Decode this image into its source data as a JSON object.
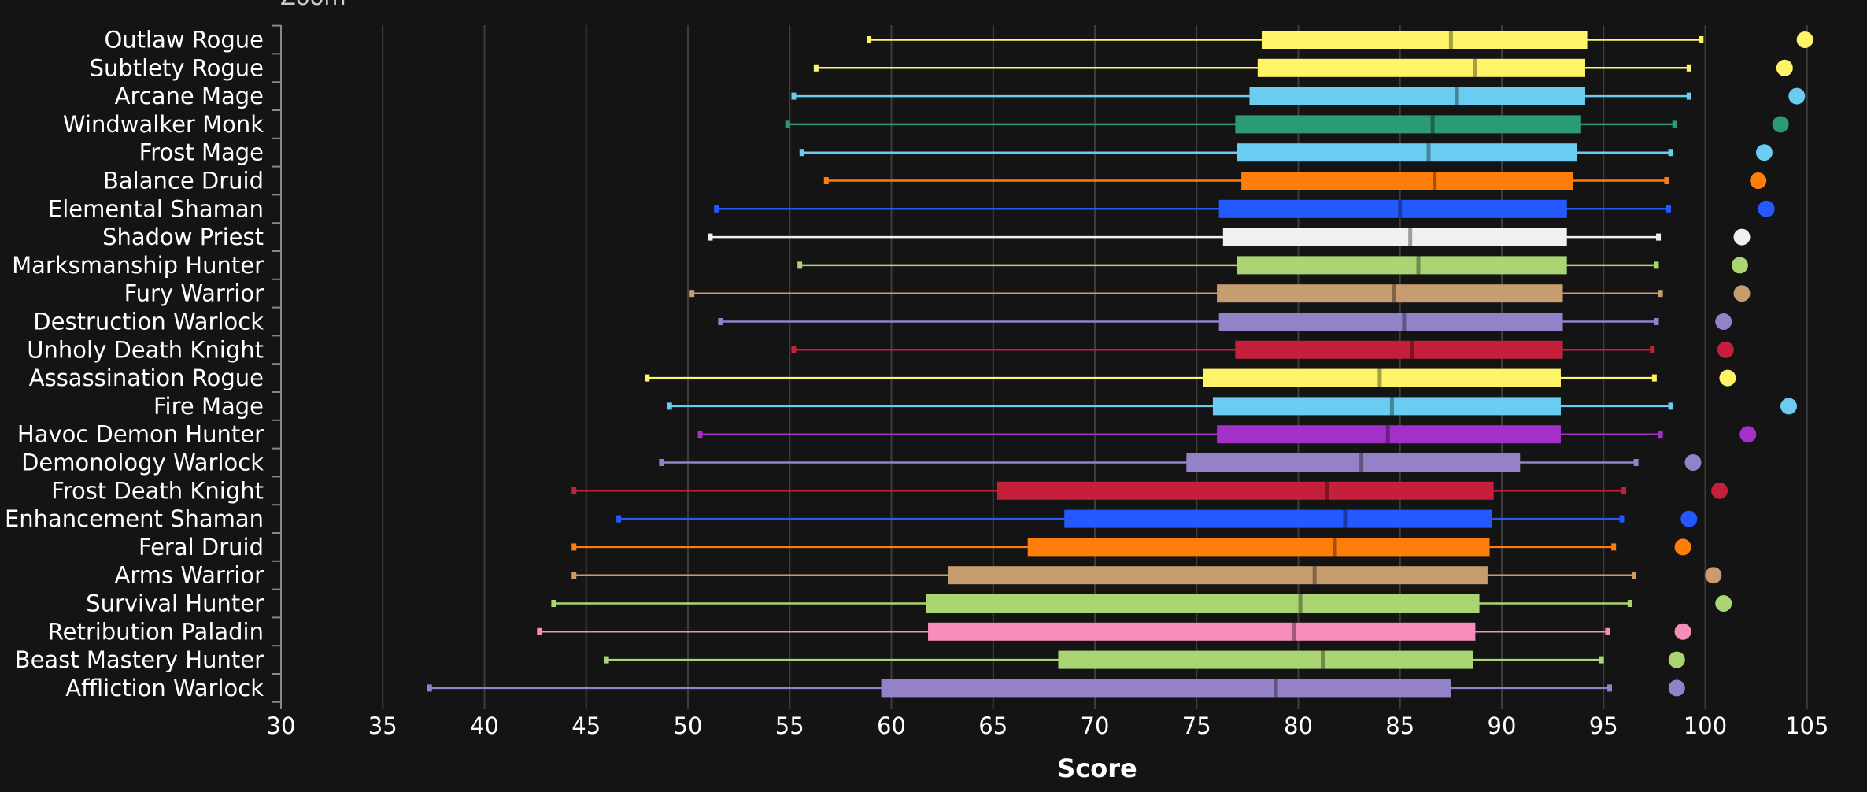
{
  "chart_data": {
    "type": "boxplot",
    "title": "Zoom",
    "xlabel": "Score",
    "xlim": [
      30,
      106
    ],
    "xticks": [
      30,
      35,
      40,
      45,
      50,
      55,
      60,
      65,
      70,
      75,
      80,
      85,
      90,
      95,
      100,
      105
    ],
    "grid": true,
    "series": [
      {
        "name": "Outlaw Rogue",
        "color": "#FFF468",
        "min": 58.9,
        "q1": 78.2,
        "median": 87.5,
        "q3": 94.2,
        "max": 99.8,
        "max_score": 104.9
      },
      {
        "name": "Subtlety Rogue",
        "color": "#FFF468",
        "min": 56.3,
        "q1": 78.0,
        "median": 88.7,
        "q3": 94.1,
        "max": 99.2,
        "max_score": 103.9
      },
      {
        "name": "Arcane Mage",
        "color": "#69CCF0",
        "min": 55.2,
        "q1": 77.6,
        "median": 87.8,
        "q3": 94.1,
        "max": 99.2,
        "max_score": 104.5
      },
      {
        "name": "Windwalker Monk",
        "color": "#2B9B74",
        "min": 54.9,
        "q1": 76.9,
        "median": 86.6,
        "q3": 93.9,
        "max": 98.5,
        "max_score": 103.7
      },
      {
        "name": "Frost Mage",
        "color": "#69CCF0",
        "min": 55.6,
        "q1": 77.0,
        "median": 86.4,
        "q3": 93.7,
        "max": 98.3,
        "max_score": 102.9
      },
      {
        "name": "Balance Druid",
        "color": "#FF7D0A",
        "min": 56.8,
        "q1": 77.2,
        "median": 86.7,
        "q3": 93.5,
        "max": 98.1,
        "max_score": 102.6
      },
      {
        "name": "Elemental Shaman",
        "color": "#2459FF",
        "min": 51.4,
        "q1": 76.1,
        "median": 85.0,
        "q3": 93.2,
        "max": 98.2,
        "max_score": 103.0
      },
      {
        "name": "Shadow Priest",
        "color": "#F0F0F0",
        "min": 51.1,
        "q1": 76.3,
        "median": 85.5,
        "q3": 93.2,
        "max": 97.7,
        "max_score": 101.8
      },
      {
        "name": "Marksmanship Hunter",
        "color": "#ABD473",
        "min": 55.5,
        "q1": 77.0,
        "median": 85.9,
        "q3": 93.2,
        "max": 97.6,
        "max_score": 101.7
      },
      {
        "name": "Fury Warrior",
        "color": "#C79C6E",
        "min": 50.2,
        "q1": 76.0,
        "median": 84.7,
        "q3": 93.0,
        "max": 97.8,
        "max_score": 101.8
      },
      {
        "name": "Destruction Warlock",
        "color": "#9482C9",
        "min": 51.6,
        "q1": 76.1,
        "median": 85.2,
        "q3": 93.0,
        "max": 97.6,
        "max_score": 100.9
      },
      {
        "name": "Unholy Death Knight",
        "color": "#C41F3B",
        "min": 55.2,
        "q1": 76.9,
        "median": 85.6,
        "q3": 93.0,
        "max": 97.4,
        "max_score": 101.0
      },
      {
        "name": "Assassination Rogue",
        "color": "#FFF468",
        "min": 48.0,
        "q1": 75.3,
        "median": 84.0,
        "q3": 92.9,
        "max": 97.5,
        "max_score": 101.1
      },
      {
        "name": "Fire Mage",
        "color": "#69CCF0",
        "min": 49.1,
        "q1": 75.8,
        "median": 84.6,
        "q3": 92.9,
        "max": 98.3,
        "max_score": 104.1
      },
      {
        "name": "Havoc Demon Hunter",
        "color": "#A330C9",
        "min": 50.6,
        "q1": 76.0,
        "median": 84.4,
        "q3": 92.9,
        "max": 97.8,
        "max_score": 102.1
      },
      {
        "name": "Demonology Warlock",
        "color": "#9482C9",
        "min": 48.7,
        "q1": 74.5,
        "median": 83.1,
        "q3": 90.9,
        "max": 96.6,
        "max_score": 99.4
      },
      {
        "name": "Frost Death Knight",
        "color": "#C41F3B",
        "min": 44.4,
        "q1": 65.2,
        "median": 81.4,
        "q3": 89.6,
        "max": 96.0,
        "max_score": 100.7
      },
      {
        "name": "Enhancement Shaman",
        "color": "#2459FF",
        "min": 46.6,
        "q1": 68.5,
        "median": 82.3,
        "q3": 89.5,
        "max": 95.9,
        "max_score": 99.2
      },
      {
        "name": "Feral Druid",
        "color": "#FF7D0A",
        "min": 44.4,
        "q1": 66.7,
        "median": 81.8,
        "q3": 89.4,
        "max": 95.5,
        "max_score": 98.9
      },
      {
        "name": "Arms Warrior",
        "color": "#C79C6E",
        "min": 44.4,
        "q1": 62.8,
        "median": 80.8,
        "q3": 89.3,
        "max": 96.5,
        "max_score": 100.4
      },
      {
        "name": "Survival Hunter",
        "color": "#ABD473",
        "min": 43.4,
        "q1": 61.7,
        "median": 80.1,
        "q3": 88.9,
        "max": 96.3,
        "max_score": 100.9
      },
      {
        "name": "Retribution Paladin",
        "color": "#F58CBA",
        "min": 42.7,
        "q1": 61.8,
        "median": 79.8,
        "q3": 88.7,
        "max": 95.2,
        "max_score": 98.9
      },
      {
        "name": "Beast Mastery Hunter",
        "color": "#ABD473",
        "min": 46.0,
        "q1": 68.2,
        "median": 81.2,
        "q3": 88.6,
        "max": 94.9,
        "max_score": 98.6
      },
      {
        "name": "Affliction Warlock",
        "color": "#9482C9",
        "min": 37.3,
        "q1": 59.5,
        "median": 78.9,
        "q3": 87.5,
        "max": 95.3,
        "max_score": 98.6
      }
    ]
  }
}
